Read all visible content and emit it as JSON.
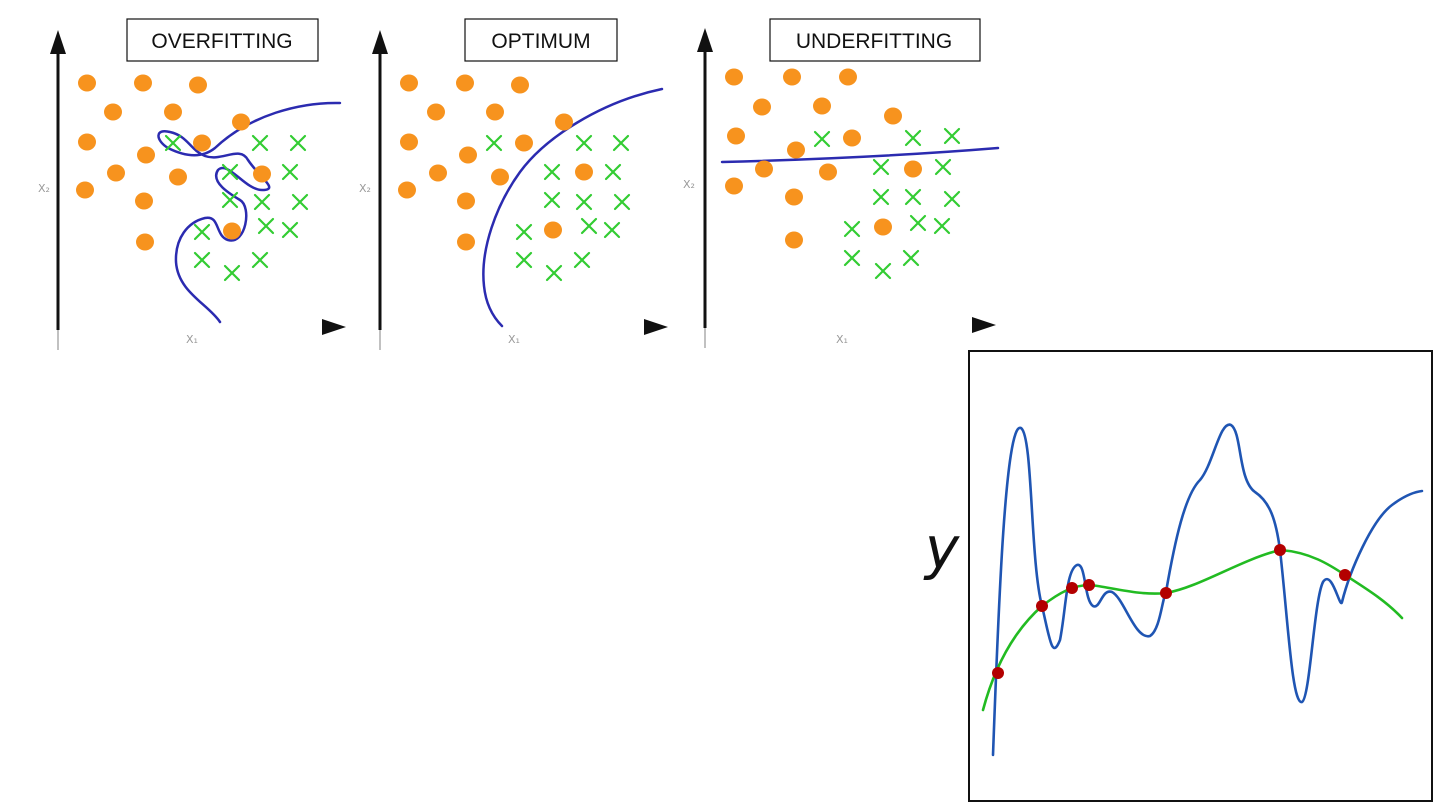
{
  "panels": [
    {
      "id": "overfitting",
      "title": "OVERFITTING",
      "x_axis_label": "X₁",
      "y_axis_label": "X₂"
    },
    {
      "id": "optimum",
      "title": "OPTIMUM",
      "x_axis_label": "X₁",
      "y_axis_label": "X₂"
    },
    {
      "id": "underfitting",
      "title": "UNDERFITTING",
      "x_axis_label": "X₁",
      "y_axis_label": "X₂"
    }
  ],
  "regression_plot": {
    "y_label": "y",
    "legend": [],
    "colors": {
      "overfit_curve": "#1f55b3",
      "fit_curve": "#22bb22",
      "points": "#b30000"
    }
  },
  "colors": {
    "circle": "#f7931e",
    "cross": "#33cc33",
    "boundary": "#2b2bb0",
    "axis": "#111111"
  }
}
